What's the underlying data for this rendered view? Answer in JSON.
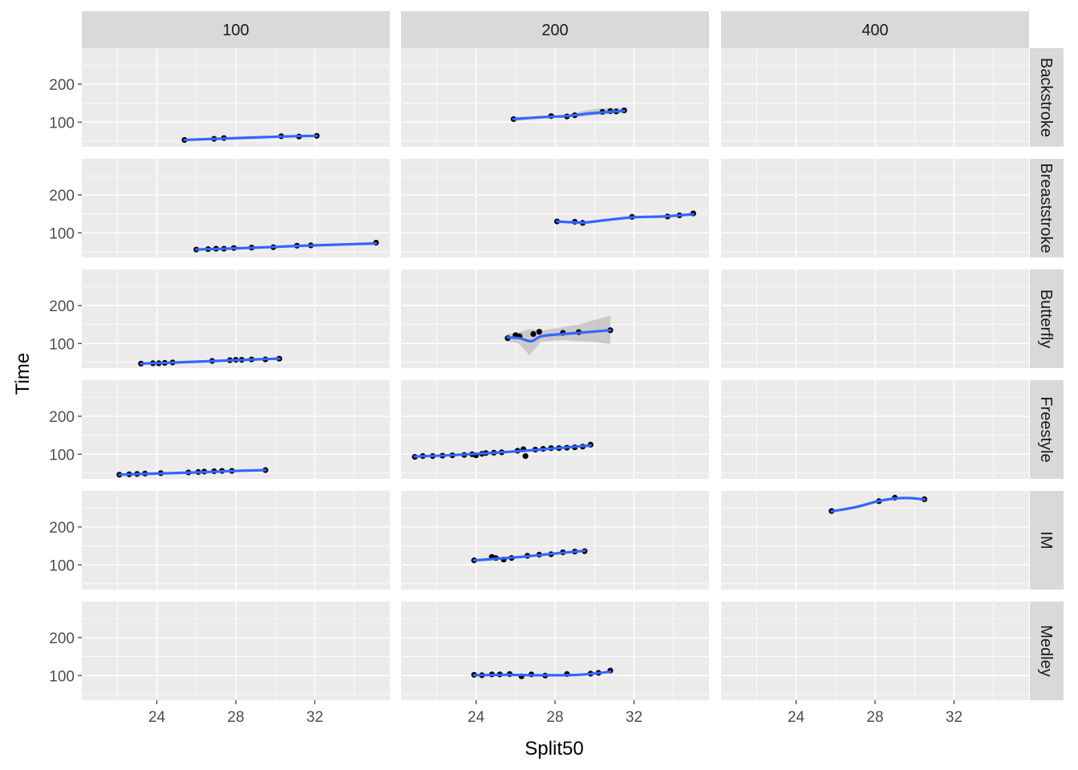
{
  "chart_data": {
    "type": "scatter",
    "facet_layout": "grid",
    "xlabel": "Split50",
    "ylabel": "Time",
    "col_facets": [
      "100",
      "200",
      "400"
    ],
    "row_facets": [
      "Backstroke",
      "Breaststroke",
      "Butterfly",
      "Freestyle",
      "IM",
      "Medley"
    ],
    "xlim": [
      20.2,
      35.8
    ],
    "ylim": [
      35,
      295
    ],
    "x_ticks": [
      24,
      28,
      32
    ],
    "y_ticks": [
      100,
      200
    ],
    "grid": true,
    "smooth": true,
    "colors": {
      "panel_bg": "#EBEBEB",
      "strip_bg": "#D9D9D9",
      "grid": "#FFFFFF",
      "point": "#000000",
      "smooth_line": "#3366FF",
      "ribbon": "#BEBEBE"
    },
    "panels": [
      {
        "col": "100",
        "row": "Backstroke",
        "points": [
          [
            25.4,
            53
          ],
          [
            26.9,
            56
          ],
          [
            27.4,
            58
          ],
          [
            30.3,
            63
          ],
          [
            31.2,
            62
          ],
          [
            32.1,
            64
          ]
        ],
        "smooth": [
          [
            25.4,
            53
          ],
          [
            27.0,
            56
          ],
          [
            28.7,
            59
          ],
          [
            30.4,
            62
          ],
          [
            32.1,
            64
          ]
        ]
      },
      {
        "col": "200",
        "row": "Backstroke",
        "points": [
          [
            25.9,
            108
          ],
          [
            27.8,
            116
          ],
          [
            28.6,
            115
          ],
          [
            29.0,
            118
          ],
          [
            30.4,
            127
          ],
          [
            30.8,
            129
          ],
          [
            31.1,
            128
          ],
          [
            31.5,
            131
          ]
        ],
        "smooth": [
          [
            25.9,
            108
          ],
          [
            27.3,
            113
          ],
          [
            28.6,
            116
          ],
          [
            29.8,
            123
          ],
          [
            31.5,
            130
          ]
        ],
        "ribbon": [
          [
            25.9,
            103,
            113
          ],
          [
            27.3,
            110,
            116
          ],
          [
            28.6,
            112,
            120
          ],
          [
            29.6,
            116,
            131
          ],
          [
            30.2,
            119,
            136
          ],
          [
            31.0,
            122,
            137
          ],
          [
            31.5,
            124,
            136
          ]
        ]
      },
      {
        "col": "100",
        "row": "Breaststroke",
        "points": [
          [
            26.0,
            56
          ],
          [
            26.6,
            57
          ],
          [
            27.0,
            58
          ],
          [
            27.4,
            58
          ],
          [
            27.9,
            60
          ],
          [
            28.8,
            61
          ],
          [
            29.9,
            62
          ],
          [
            31.1,
            66
          ],
          [
            31.8,
            67
          ],
          [
            35.1,
            74
          ]
        ],
        "smooth": [
          [
            26.0,
            56
          ],
          [
            28.0,
            59
          ],
          [
            30.0,
            63
          ],
          [
            32.0,
            67
          ],
          [
            35.1,
            72
          ]
        ]
      },
      {
        "col": "200",
        "row": "Breaststroke",
        "points": [
          [
            28.1,
            130
          ],
          [
            29.0,
            129
          ],
          [
            29.4,
            126
          ],
          [
            31.9,
            142
          ],
          [
            33.7,
            143
          ],
          [
            34.3,
            146
          ],
          [
            35.0,
            151
          ]
        ],
        "smooth": [
          [
            28.1,
            130
          ],
          [
            29.4,
            127
          ],
          [
            30.5,
            133
          ],
          [
            32.0,
            141
          ],
          [
            33.5,
            143
          ],
          [
            35.0,
            149
          ]
        ]
      },
      {
        "col": "100",
        "row": "Butterfly",
        "points": [
          [
            23.2,
            47
          ],
          [
            23.8,
            48
          ],
          [
            24.1,
            48
          ],
          [
            24.4,
            49
          ],
          [
            24.8,
            50
          ],
          [
            26.8,
            54
          ],
          [
            27.7,
            56
          ],
          [
            28.0,
            57
          ],
          [
            28.3,
            57
          ],
          [
            28.8,
            58
          ],
          [
            29.5,
            58
          ],
          [
            30.2,
            60
          ]
        ],
        "smooth": [
          [
            23.2,
            47
          ],
          [
            25.0,
            50
          ],
          [
            27.0,
            54
          ],
          [
            29.0,
            58
          ],
          [
            30.2,
            60
          ]
        ]
      },
      {
        "col": "200",
        "row": "Butterfly",
        "points": [
          [
            25.6,
            114
          ],
          [
            26.0,
            122
          ],
          [
            26.2,
            119
          ],
          [
            26.9,
            125
          ],
          [
            27.2,
            131
          ],
          [
            28.4,
            128
          ],
          [
            29.2,
            130
          ],
          [
            30.8,
            135
          ]
        ],
        "smooth": [
          [
            25.6,
            116
          ],
          [
            26.2,
            114
          ],
          [
            26.8,
            106
          ],
          [
            27.3,
            119
          ],
          [
            28.4,
            125
          ],
          [
            29.2,
            128
          ],
          [
            30.8,
            135
          ]
        ],
        "ribbon": [
          [
            25.6,
            105,
            125
          ],
          [
            26.2,
            99,
            130
          ],
          [
            26.7,
            69,
            138
          ],
          [
            27.3,
            105,
            134
          ],
          [
            28.4,
            109,
            143
          ],
          [
            29.2,
            106,
            150
          ],
          [
            30.0,
            104,
            162
          ],
          [
            30.8,
            98,
            173
          ]
        ]
      },
      {
        "col": "100",
        "row": "Freestyle",
        "points": [
          [
            22.1,
            46
          ],
          [
            22.6,
            47
          ],
          [
            23.0,
            48
          ],
          [
            23.4,
            49
          ],
          [
            24.2,
            50
          ],
          [
            25.6,
            52
          ],
          [
            26.1,
            53
          ],
          [
            26.4,
            54
          ],
          [
            26.9,
            55
          ],
          [
            27.3,
            56
          ],
          [
            27.8,
            56
          ],
          [
            29.5,
            58
          ]
        ],
        "smooth": [
          [
            22.1,
            46
          ],
          [
            24.0,
            49
          ],
          [
            26.0,
            52
          ],
          [
            28.0,
            56
          ],
          [
            29.5,
            58
          ]
        ]
      },
      {
        "col": "200",
        "row": "Freestyle",
        "points": [
          [
            20.9,
            93
          ],
          [
            21.3,
            95
          ],
          [
            21.8,
            95
          ],
          [
            22.3,
            96
          ],
          [
            22.8,
            97
          ],
          [
            23.4,
            98
          ],
          [
            23.8,
            100
          ],
          [
            24.0,
            97
          ],
          [
            24.3,
            101
          ],
          [
            24.5,
            103
          ],
          [
            24.9,
            104
          ],
          [
            25.3,
            105
          ],
          [
            26.1,
            109
          ],
          [
            26.4,
            113
          ],
          [
            26.5,
            95
          ],
          [
            27.0,
            112
          ],
          [
            27.4,
            114
          ],
          [
            27.8,
            116
          ],
          [
            28.2,
            116
          ],
          [
            28.6,
            117
          ],
          [
            29.0,
            118
          ],
          [
            29.4,
            120
          ],
          [
            29.8,
            125
          ]
        ],
        "smooth": [
          [
            20.9,
            94
          ],
          [
            23.0,
            98
          ],
          [
            25.0,
            104
          ],
          [
            27.0,
            111
          ],
          [
            29.8,
            123
          ]
        ]
      },
      {
        "col": "400",
        "row": "IM",
        "points": [
          [
            25.8,
            242
          ],
          [
            28.2,
            268
          ],
          [
            29.0,
            277
          ],
          [
            30.5,
            273
          ]
        ],
        "smooth": [
          [
            25.8,
            241
          ],
          [
            27.0,
            252
          ],
          [
            28.1,
            267
          ],
          [
            29.0,
            275
          ],
          [
            29.8,
            276
          ],
          [
            30.5,
            272
          ]
        ]
      },
      {
        "col": "200",
        "row": "IM",
        "points": [
          [
            23.9,
            112
          ],
          [
            24.8,
            121
          ],
          [
            25.0,
            118
          ],
          [
            25.4,
            114
          ],
          [
            25.8,
            118
          ],
          [
            26.6,
            124
          ],
          [
            27.2,
            127
          ],
          [
            27.8,
            128
          ],
          [
            28.4,
            133
          ],
          [
            29.0,
            135
          ],
          [
            29.5,
            136
          ]
        ],
        "smooth": [
          [
            23.9,
            112
          ],
          [
            25.0,
            116
          ],
          [
            26.5,
            122
          ],
          [
            28.0,
            130
          ],
          [
            29.5,
            137
          ]
        ]
      },
      {
        "col": "200",
        "row": "Medley",
        "points": [
          [
            23.9,
            102
          ],
          [
            24.3,
            101
          ],
          [
            24.8,
            103
          ],
          [
            25.2,
            103
          ],
          [
            25.7,
            104
          ],
          [
            26.3,
            98
          ],
          [
            26.8,
            103
          ],
          [
            27.5,
            100
          ],
          [
            28.6,
            104
          ],
          [
            29.8,
            105
          ],
          [
            30.2,
            107
          ],
          [
            30.8,
            113
          ]
        ],
        "smooth": [
          [
            23.9,
            101
          ],
          [
            25.5,
            102
          ],
          [
            27.0,
            101
          ],
          [
            28.5,
            101
          ],
          [
            29.5,
            103
          ],
          [
            30.8,
            110
          ]
        ]
      }
    ]
  }
}
